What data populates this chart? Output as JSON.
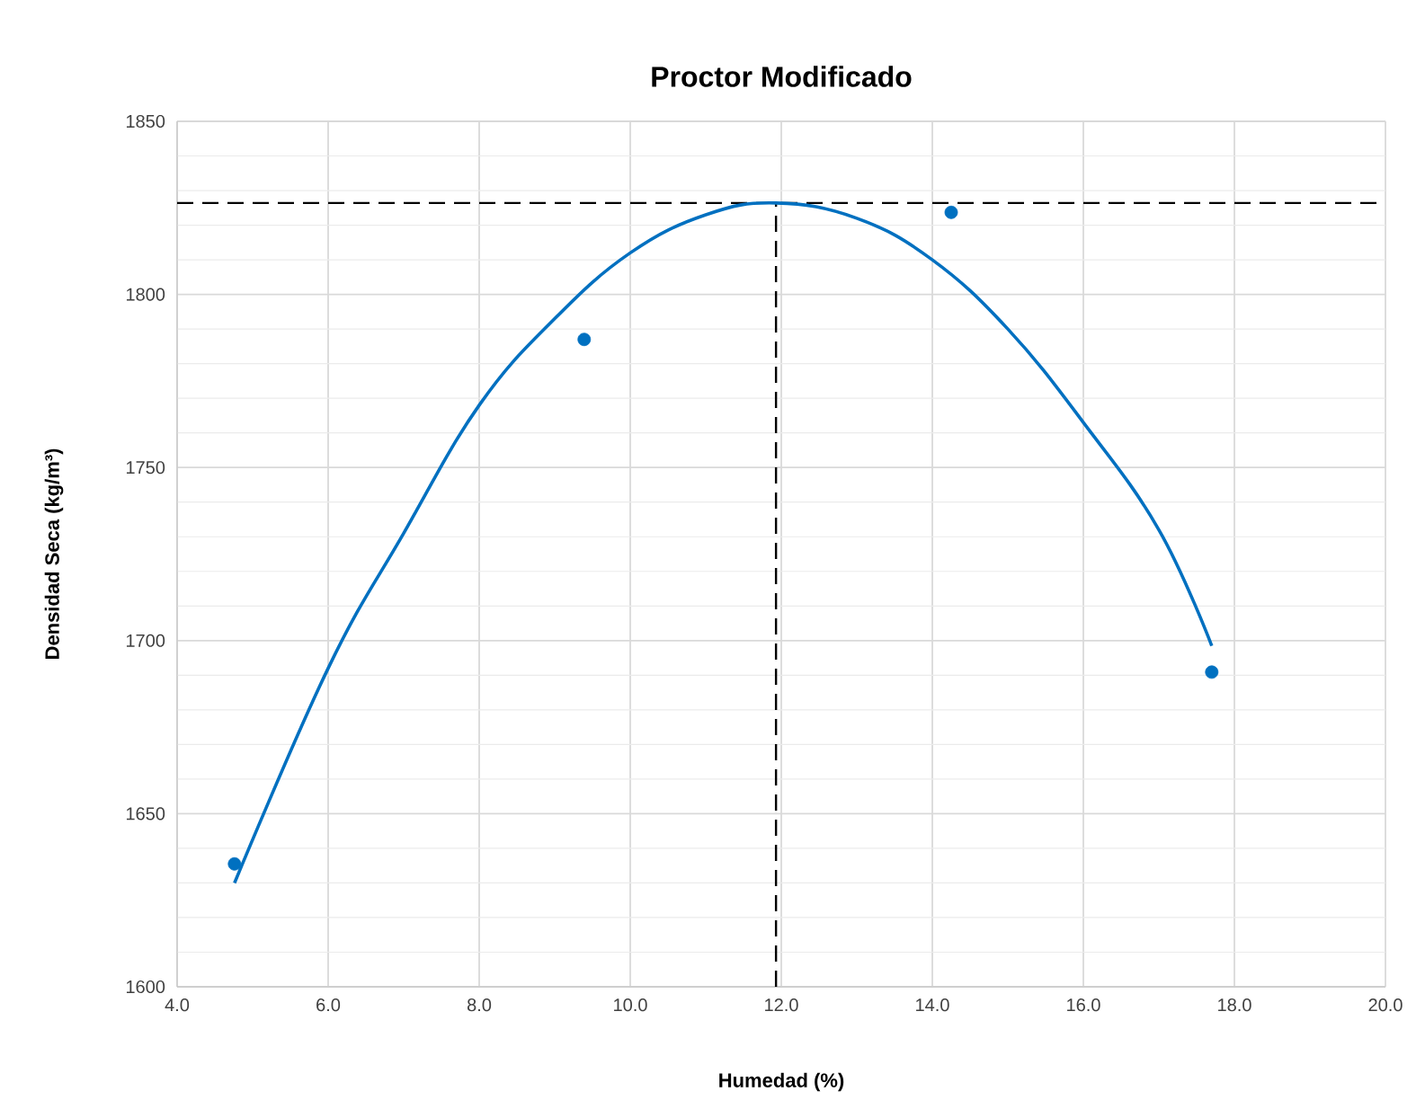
{
  "chart_data": {
    "type": "scatter",
    "title": "Proctor Modificado",
    "xlabel": "Humedad (%)",
    "ylabel": "Densidad Seca (kg/m³)",
    "series": [
      {
        "color": "#0070c0",
        "marker": "circle",
        "x": [
          4.76,
          9.39,
          14.25,
          17.7
        ],
        "values": [
          1635.5,
          1787.0,
          1823.7,
          1690.9
        ]
      },
      {
        "type": "line",
        "color": "#0070c0",
        "marker": "none",
        "line_style": "solid",
        "x": [
          4.76,
          6,
          7,
          8,
          9,
          10,
          11,
          11.93,
          13,
          14,
          15,
          16,
          17,
          17.7
        ],
        "values": [
          1630,
          1692,
          1731,
          1768,
          1793,
          1812,
          1823,
          1826.4,
          1822,
          1810,
          1790,
          1763,
          1732,
          1698.5
        ]
      }
    ],
    "xlim": [
      4.0,
      20.0
    ],
    "xticks": [
      {
        "value": 4,
        "label": "4.0"
      },
      {
        "value": 6,
        "label": "6.0"
      },
      {
        "value": 8,
        "label": "8.0"
      },
      {
        "value": 10,
        "label": "10.0"
      },
      {
        "value": 12,
        "label": "12.0"
      },
      {
        "value": 14,
        "label": "14.0"
      },
      {
        "value": 16,
        "label": "16.0"
      },
      {
        "value": 18,
        "label": "18.0"
      },
      {
        "value": 20,
        "label": "20.0"
      }
    ],
    "ylim": [
      1600,
      1850
    ],
    "yticks": [
      1600,
      1650,
      1700,
      1750,
      1800,
      1850
    ],
    "grid": true,
    "ref_lines": [
      {
        "axis": "y",
        "value": 1826.4,
        "color": "#000000",
        "line_style": "dashed"
      },
      {
        "axis": "x",
        "value": 11.93,
        "color": "#000000",
        "line_style": "dashed"
      }
    ]
  }
}
